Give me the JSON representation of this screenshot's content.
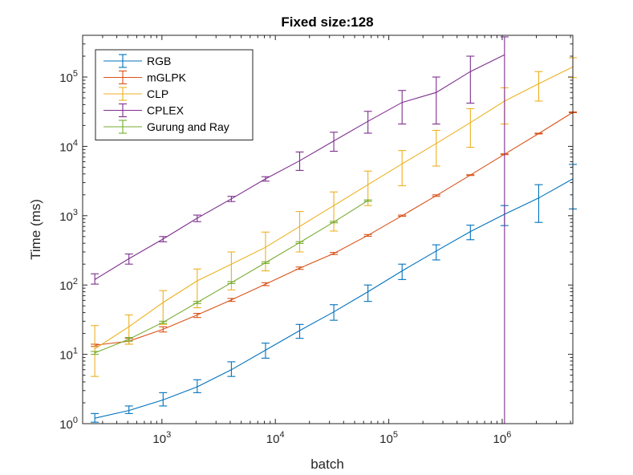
{
  "chart_data": {
    "type": "line",
    "title": "Fixed size:128",
    "xlabel": "batch",
    "ylabel": "Time (ms)",
    "xscale": "log",
    "yscale": "log",
    "xlim": [
      200,
      4194304
    ],
    "ylim": [
      1,
      400000
    ],
    "xticks": [
      {
        "value": 1000,
        "base": "10",
        "exp": "3"
      },
      {
        "value": 10000,
        "base": "10",
        "exp": "4"
      },
      {
        "value": 100000,
        "base": "10",
        "exp": "5"
      },
      {
        "value": 1000000,
        "base": "10",
        "exp": "6"
      }
    ],
    "yticks": [
      {
        "value": 1,
        "base": "10",
        "exp": "0"
      },
      {
        "value": 10,
        "base": "10",
        "exp": "1"
      },
      {
        "value": 100,
        "base": "10",
        "exp": "2"
      },
      {
        "value": 1000,
        "base": "10",
        "exp": "3"
      },
      {
        "value": 10000,
        "base": "10",
        "exp": "4"
      },
      {
        "value": 100000,
        "base": "10",
        "exp": "5"
      }
    ],
    "legend_position": "top-left",
    "series": [
      {
        "name": "RGB",
        "color": "#0072BD",
        "x": [
          256,
          512,
          1024,
          2048,
          4096,
          8192,
          16384,
          32768,
          65536,
          131072,
          262144,
          524288,
          1048576,
          2097152,
          4194304
        ],
        "y": [
          1.2,
          1.55,
          2.2,
          3.4,
          6.0,
          11.5,
          22,
          41,
          80,
          160,
          310,
          590,
          1050,
          1800,
          3400
        ],
        "lo": [
          1.05,
          1.4,
          1.8,
          2.8,
          4.8,
          8.8,
          17,
          31,
          58,
          120,
          230,
          450,
          720,
          800,
          1250
        ],
        "hi": [
          1.4,
          1.8,
          2.8,
          4.3,
          7.8,
          14.5,
          27,
          52,
          100,
          200,
          380,
          730,
          1400,
          2800,
          5500
        ]
      },
      {
        "name": "mGLPK",
        "color": "#D95319",
        "x": [
          256,
          512,
          1024,
          2048,
          4096,
          8192,
          16384,
          32768,
          65536,
          131072,
          262144,
          524288,
          1048576,
          2097152,
          4194304
        ],
        "y": [
          13.5,
          15.5,
          23,
          37,
          61,
          103,
          175,
          285,
          520,
          1000,
          1950,
          3850,
          7700,
          15300,
          31000
        ],
        "lo": [
          13,
          14,
          21,
          34,
          58,
          98,
          168,
          275,
          505,
          980,
          1900,
          3800,
          7600,
          15100,
          30600
        ],
        "hi": [
          14,
          17,
          25,
          39,
          64,
          108,
          182,
          295,
          535,
          1020,
          2000,
          3900,
          7800,
          15500,
          31400
        ]
      },
      {
        "name": "CLP",
        "color": "#EDB120",
        "x": [
          256,
          512,
          1024,
          2048,
          4096,
          8192,
          16384,
          32768,
          65536,
          131072,
          262144,
          524288,
          1048576,
          2097152,
          4194304
        ],
        "y": [
          12,
          25,
          56,
          115,
          200,
          350,
          700,
          1400,
          2800,
          5600,
          11000,
          22000,
          45000,
          80000,
          140000
        ],
        "lo": [
          4.8,
          14,
          27,
          47,
          85,
          160,
          300,
          600,
          1400,
          2700,
          5200,
          9700,
          21000,
          45000,
          98000
        ],
        "hi": [
          26,
          37,
          83,
          170,
          300,
          580,
          1150,
          2200,
          4400,
          8700,
          17000,
          35000,
          70000,
          120000,
          190000
        ]
      },
      {
        "name": "CPLEX",
        "color": "#7E2F8E",
        "x": [
          256,
          512,
          1024,
          2048,
          4096,
          8192,
          16384,
          32768,
          65536,
          131072,
          262144,
          524288,
          1048576
        ],
        "y": [
          120,
          240,
          460,
          920,
          1750,
          3400,
          6200,
          12000,
          23000,
          43000,
          60000,
          120000,
          210000
        ],
        "lo": [
          103,
          200,
          420,
          820,
          1600,
          3150,
          4500,
          8500,
          15500,
          21000,
          21000,
          42000,
          null
        ],
        "hi": [
          145,
          280,
          500,
          1020,
          1900,
          3650,
          8300,
          16000,
          32000,
          64000,
          100000,
          200000,
          380000
        ]
      },
      {
        "name": "Gurung and Ray",
        "color": "#77AC30",
        "x": [
          256,
          512,
          1024,
          2048,
          4096,
          8192,
          16384,
          32768,
          65536
        ],
        "y": [
          10.5,
          16.5,
          29,
          56,
          108,
          210,
          410,
          810,
          1650
        ],
        "lo": [
          10,
          15.5,
          28,
          54,
          105,
          204,
          398,
          790,
          1610
        ],
        "hi": [
          11,
          17.5,
          30,
          58,
          112,
          216,
          422,
          830,
          1690
        ]
      }
    ]
  }
}
